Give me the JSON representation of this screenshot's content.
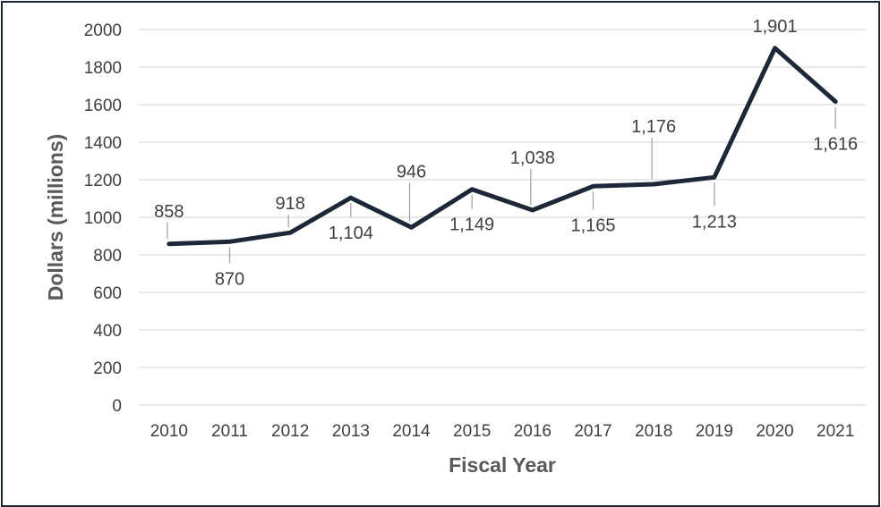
{
  "chart_data": {
    "type": "line",
    "title": "",
    "xlabel": "Fiscal Year",
    "ylabel": "Dollars (millions)",
    "ylim": [
      0,
      2000
    ],
    "yticks": [
      0,
      200,
      400,
      600,
      800,
      1000,
      1200,
      1400,
      1600,
      1800,
      2000
    ],
    "ytick_labels": [
      "0",
      "200",
      "400",
      "600",
      "800",
      "1000",
      "1200",
      "1400",
      "1600",
      "1800",
      "2000"
    ],
    "categories": [
      "2010",
      "2011",
      "2012",
      "2013",
      "2014",
      "2015",
      "2016",
      "2017",
      "2018",
      "2019",
      "2020",
      "2021"
    ],
    "series": [
      {
        "values": [
          858,
          870,
          918,
          1104,
          946,
          1149,
          1038,
          1165,
          1176,
          1213,
          1901,
          1616
        ],
        "data_labels": [
          "858",
          "870",
          "918",
          "1,104",
          "946",
          "1,149",
          "1,038",
          "1,165",
          "1,176",
          "1,213",
          "1,901",
          "1,616"
        ],
        "color": "#1c2838"
      }
    ],
    "grid": true,
    "legend": "none"
  }
}
